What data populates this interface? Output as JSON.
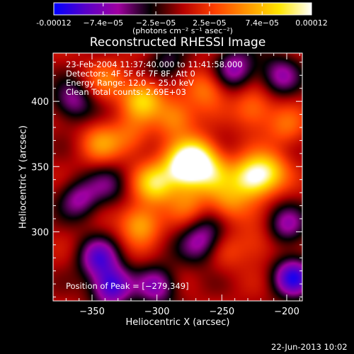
{
  "colorbar": {
    "tick_labels": [
      "-0.00012",
      "−7.4e−05",
      "−2.5e−05",
      "2.5e−05",
      "7.4e−05",
      "0.00012"
    ],
    "tick_values": [
      -0.00012,
      -7.4e-05,
      -2.5e-05,
      2.5e-05,
      7.4e-05,
      0.00012
    ],
    "unit_label": "(photons cm⁻² s⁻¹ asec⁻²)",
    "colors": [
      "#0000ff",
      "#5a00c8",
      "#a000a0",
      "#000000",
      "#b40000",
      "#ff4000",
      "#ff9600",
      "#ffe600",
      "#ffffff"
    ]
  },
  "chart_data": {
    "type": "heatmap",
    "title": "Reconstructed RHESSI Image",
    "xlabel": "Heliocentric X (arcsec)",
    "ylabel": "Heliocentric Y (arcsec)",
    "xlim": [
      -380,
      -188
    ],
    "ylim": [
      247,
      437
    ],
    "xticks": [
      -350,
      -300,
      -250,
      -200
    ],
    "xtick_labels": [
      "−350",
      "−300",
      "−250",
      "−200"
    ],
    "yticks": [
      300,
      350,
      400
    ],
    "ytick_labels": [
      "300",
      "350",
      "400"
    ],
    "zlim": [
      -0.00012,
      0.00012
    ],
    "annotations": [
      "23-Feb-2004 11:37:40.000 to 11:41:58.000",
      "Detectors: 4F 5F 6F 7F 8F, Att 0",
      "Energy Range: 12.0 − 25.0 keV",
      "Clean     Total counts: 2.69E+03"
    ],
    "peak_label": "Position of Peak = [−279,349]",
    "peak_position": [
      -279,
      349
    ],
    "sources": [
      {
        "x": -279,
        "y": 349,
        "value": 0.00012
      },
      {
        "x": -301,
        "y": 337,
        "value": 9e-05
      },
      {
        "x": -268,
        "y": 358,
        "value": 8e-05
      },
      {
        "x": -257,
        "y": 344,
        "value": 6e-05
      },
      {
        "x": -228,
        "y": 341,
        "value": 0.0001
      },
      {
        "x": -214,
        "y": 346,
        "value": 7e-05
      },
      {
        "x": -245,
        "y": 322,
        "value": 5e-05
      },
      {
        "x": -311,
        "y": 402,
        "value": 8e-05
      },
      {
        "x": -286,
        "y": 388,
        "value": 6e-05
      },
      {
        "x": -262,
        "y": 410,
        "value": 5e-05
      },
      {
        "x": -339,
        "y": 416,
        "value": 4e-05
      },
      {
        "x": -343,
        "y": 368,
        "value": 5e-05
      },
      {
        "x": -320,
        "y": 372,
        "value": 4e-05
      },
      {
        "x": -313,
        "y": 306,
        "value": 7e-05
      },
      {
        "x": -276,
        "y": 322,
        "value": 4e-05
      },
      {
        "x": -226,
        "y": 394,
        "value": 5e-05
      },
      {
        "x": -200,
        "y": 380,
        "value": 4e-05
      },
      {
        "x": -223,
        "y": 290,
        "value": 3e-05
      },
      {
        "x": -246,
        "y": 285,
        "value": 2e-05
      },
      {
        "x": -360,
        "y": 325,
        "value": -6e-05
      },
      {
        "x": -345,
        "y": 280,
        "value": -8e-05
      },
      {
        "x": -335,
        "y": 258,
        "value": -0.0001
      },
      {
        "x": -300,
        "y": 258,
        "value": -7e-05
      },
      {
        "x": -268,
        "y": 290,
        "value": -5e-05
      },
      {
        "x": -240,
        "y": 425,
        "value": -7e-05
      },
      {
        "x": -205,
        "y": 420,
        "value": -6e-05
      },
      {
        "x": -195,
        "y": 265,
        "value": -0.0001
      },
      {
        "x": -200,
        "y": 305,
        "value": -6e-05
      },
      {
        "x": -365,
        "y": 400,
        "value": -6e-05
      },
      {
        "x": -292,
        "y": 427,
        "value": -4e-05
      },
      {
        "x": -337,
        "y": 336,
        "value": -4e-05
      },
      {
        "x": -260,
        "y": 300,
        "value": -3e-05
      }
    ]
  },
  "footer": {
    "timestamp": "22-Jun-2013 10:02"
  }
}
